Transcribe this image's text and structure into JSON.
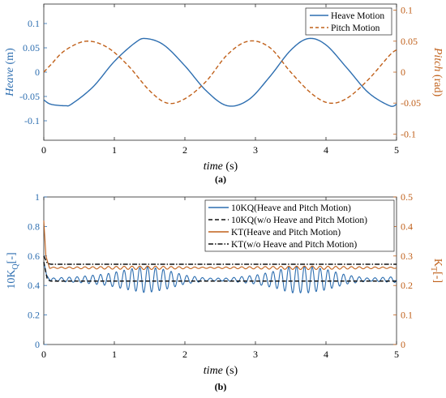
{
  "chart_data": [
    {
      "type": "line",
      "panel_label": "(a)",
      "xlabel": {
        "var": "time",
        "unit": " (s)"
      },
      "xlim": [
        0,
        5
      ],
      "xticks": [
        "0",
        "1",
        "2",
        "3",
        "4",
        "5"
      ],
      "ylabel_left": {
        "var": "Heave",
        "unit": " (m)",
        "color": "#2d6eb0"
      },
      "ylim_left": [
        -0.14,
        0.14
      ],
      "yticks_left": [
        "-0.1",
        "-0.05",
        "0",
        "0.05",
        "0.1"
      ],
      "ylabel_right": {
        "var": "Pitch",
        "unit": " (rad)",
        "color": "#c0601a"
      },
      "ylim_right": [
        -0.11,
        0.11
      ],
      "yticks_right": [
        "-0.1",
        "-0.05",
        "0",
        "0.05",
        "0.1"
      ],
      "grid": false,
      "legend_position": "top-right",
      "series": [
        {
          "name": "Heave Motion",
          "axis": "left",
          "style": "solid",
          "color": "#2d6eb0",
          "x": [
            0,
            0.1,
            0.3,
            0.4,
            0.7,
            1.0,
            1.3,
            1.45,
            1.7,
            2.0,
            2.3,
            2.6,
            2.9,
            3.2,
            3.5,
            3.75,
            4.0,
            4.3,
            4.6,
            4.9,
            5.0
          ],
          "y": [
            -0.057,
            -0.066,
            -0.069,
            -0.065,
            -0.03,
            0.022,
            0.061,
            0.069,
            0.056,
            0.013,
            -0.038,
            -0.069,
            -0.057,
            -0.01,
            0.045,
            0.069,
            0.056,
            0.008,
            -0.042,
            -0.069,
            -0.066
          ]
        },
        {
          "name": "Pitch Motion",
          "axis": "right",
          "style": "dashed",
          "color": "#c0601a",
          "x": [
            0,
            0.1,
            0.3,
            0.6,
            0.9,
            1.2,
            1.5,
            1.75,
            2.0,
            2.3,
            2.6,
            2.9,
            3.2,
            3.5,
            3.8,
            4.05,
            4.3,
            4.6,
            4.9,
            5.0
          ],
          "y": [
            0.0,
            0.012,
            0.035,
            0.05,
            0.04,
            0.01,
            -0.03,
            -0.05,
            -0.043,
            -0.015,
            0.028,
            0.05,
            0.04,
            0.0,
            -0.035,
            -0.05,
            -0.042,
            -0.012,
            0.027,
            0.036
          ]
        }
      ]
    },
    {
      "type": "line",
      "panel_label": "(b)",
      "xlabel": {
        "var": "time",
        "unit": " (s)"
      },
      "xlim": [
        0,
        5
      ],
      "xticks": [
        "0",
        "1",
        "2",
        "3",
        "4",
        "5"
      ],
      "ylabel_left": {
        "main": "10K",
        "sub": "Q",
        "unit": "[-]",
        "color": "#2d6eb0"
      },
      "ylim_left": [
        0,
        1
      ],
      "yticks_left": [
        "0",
        "0.2",
        "0.4",
        "0.6",
        "0.8",
        "1"
      ],
      "ylabel_right": {
        "main": "K",
        "sub": "T",
        "unit": "[-]",
        "color": "#c0601a"
      },
      "ylim_right": [
        0,
        0.5
      ],
      "yticks_right": [
        "0",
        "0.1",
        "0.2",
        "0.3",
        "0.4",
        "0.5"
      ],
      "grid": false,
      "legend_position": "top-right",
      "series": [
        {
          "name": "10KQ(Heave and Pitch Motion)",
          "axis": "left",
          "style": "solid",
          "color": "#2d6eb0",
          "model": "oscillation",
          "x": [
            0,
            0.04,
            0.08
          ],
          "y": [
            0.56,
            0.47,
            0.44
          ],
          "mean": 0.44,
          "osc_frequency_hz": 9,
          "envelope_x": [
            0.1,
            0.5,
            0.9,
            1.2,
            1.45,
            1.7,
            2.0,
            2.3,
            2.6,
            3.0,
            3.3,
            3.5,
            3.75,
            4.0,
            4.3,
            4.6,
            5.0
          ],
          "envelope_y": [
            0.01,
            0.02,
            0.04,
            0.07,
            0.09,
            0.07,
            0.03,
            0.01,
            0.01,
            0.03,
            0.06,
            0.09,
            0.09,
            0.07,
            0.03,
            0.01,
            0.02
          ]
        },
        {
          "name": "10KQ(w/o Heave and Pitch Motion)",
          "axis": "left",
          "style": "dashed",
          "color": "#111111",
          "x": [
            0,
            0.05,
            0.1,
            5.0
          ],
          "y": [
            0.56,
            0.44,
            0.43,
            0.43
          ]
        },
        {
          "name": "KT(Heave and Pitch Motion)",
          "axis": "right",
          "style": "solid",
          "color": "#c0601a",
          "model": "oscillation",
          "x": [
            0,
            0.03,
            0.08
          ],
          "y": [
            0.42,
            0.3,
            0.26
          ],
          "mean": 0.26,
          "osc_frequency_hz": 9,
          "envelope_x": [
            0.1,
            1.45,
            2.3,
            3.75,
            5.0
          ],
          "envelope_y": [
            0.002,
            0.006,
            0.002,
            0.006,
            0.002
          ]
        },
        {
          "name": "KT(w/o Heave and Pitch Motion)",
          "axis": "right",
          "style": "dashdot",
          "color": "#111111",
          "x": [
            0,
            0.05,
            0.1,
            5.0
          ],
          "y": [
            0.3,
            0.275,
            0.272,
            0.272
          ]
        }
      ]
    }
  ]
}
